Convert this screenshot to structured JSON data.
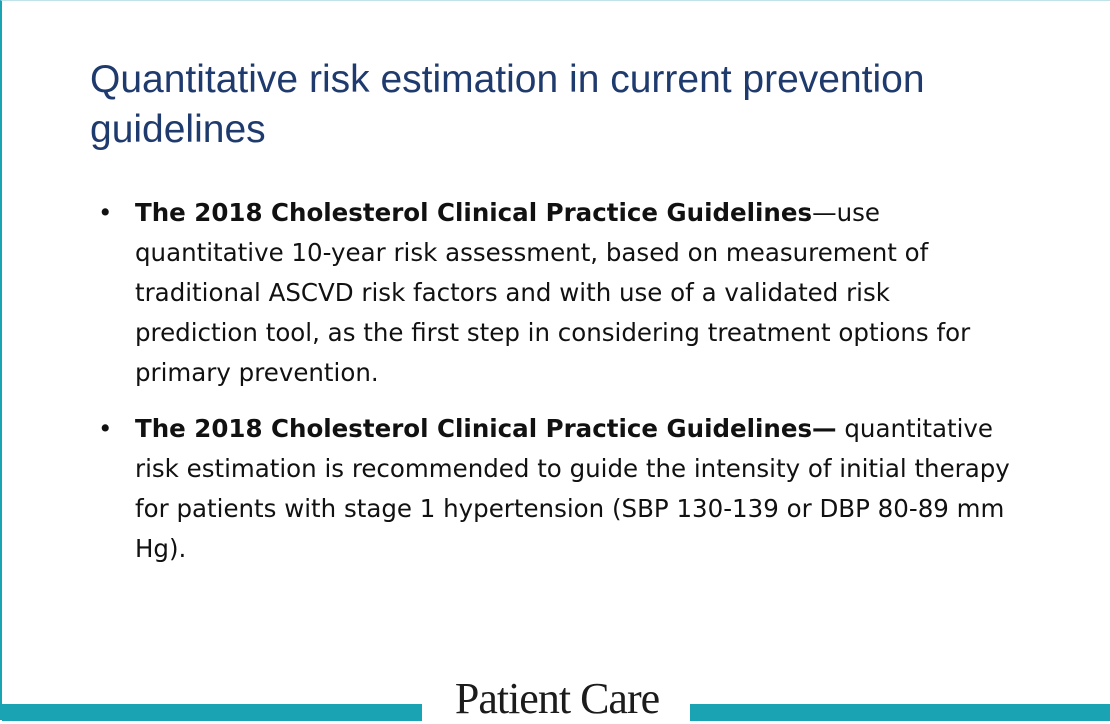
{
  "title": "Quantitative risk estimation in current prevention guidelines",
  "bullets": [
    {
      "lead": "The 2018 Cholesterol Clinical Practice Guidelines",
      "text": "—use quantitative 10-year risk assessment, based on measurement of traditional ASCVD risk factors and with use of a validated risk prediction tool, as the first step in considering treatment options for primary prevention."
    },
    {
      "lead": "The 2018 Cholesterol Clinical Practice Guidelines—",
      "text": "quantitative risk estimation is recommended to guide the intensity of initial therapy for patients with stage 1 hypertension (SBP 130-139 or DBP 80-89 mm Hg)."
    }
  ],
  "footer": {
    "logo": "Patient Care"
  }
}
